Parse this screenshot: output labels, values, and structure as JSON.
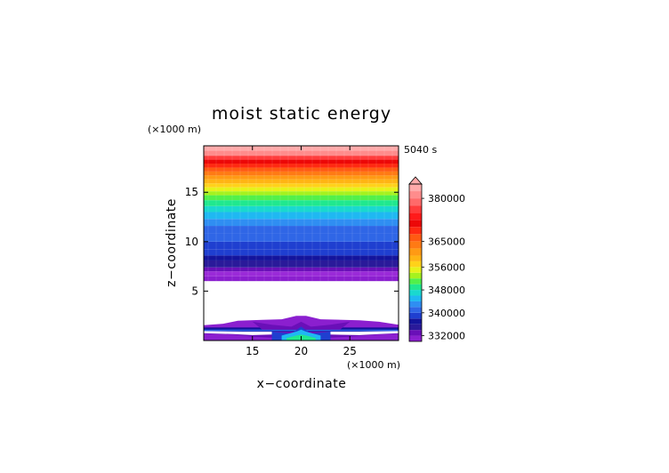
{
  "chart_data": {
    "type": "heatmap",
    "title": "moist static energy",
    "time_label": "5040 s",
    "xlabel": "x−coordinate",
    "ylabel": "z−coordinate",
    "x_unit": "(×1000 m)",
    "y_unit": "(×1000 m)",
    "xlim": [
      10,
      30
    ],
    "ylim": [
      0,
      19.7
    ],
    "x_ticks": [
      15,
      20,
      25
    ],
    "x_tick_labels": [
      "15",
      "20",
      "25"
    ],
    "y_ticks": [
      5,
      10,
      15
    ],
    "y_tick_labels": [
      "5",
      "10",
      "15"
    ],
    "colorbar": {
      "levels": [
        330000,
        332000,
        334000,
        336000,
        338000,
        340000,
        342000,
        344000,
        346000,
        348000,
        350000,
        352000,
        354000,
        356000,
        358000,
        360000,
        362500,
        365000,
        367500,
        370000,
        372500,
        375000,
        377500,
        380000,
        382500,
        385000
      ],
      "tick_values": [
        332000,
        340000,
        348000,
        356000,
        365000,
        380000
      ],
      "tick_labels": [
        "332000",
        "340000",
        "348000",
        "356000",
        "365000",
        "380000"
      ],
      "colors": [
        "#8b1fcf",
        "#6a0fb8",
        "#2a1a9a",
        "#14149c",
        "#1f3fd0",
        "#2f66e6",
        "#2f8ef2",
        "#1fb8f2",
        "#1ad8cf",
        "#20e88e",
        "#52f04a",
        "#a6f21e",
        "#e6f21a",
        "#ffd21a",
        "#ffb414",
        "#ff9a14",
        "#ff7a14",
        "#ff5a12",
        "#ff2a12",
        "#ec0808",
        "#ff1a1a",
        "#ff3c3c",
        "#ff6a6a",
        "#ff8c8c",
        "#ffaaaa"
      ],
      "extend": "max"
    },
    "upper_bands": [
      {
        "z0": 6.0,
        "z1": 6.5,
        "color": "#8b1fcf"
      },
      {
        "z0": 6.5,
        "z1": 7.0,
        "color": "#9a2ad8"
      },
      {
        "z0": 7.0,
        "z1": 7.4,
        "color": "#6a0fb8"
      },
      {
        "z0": 7.4,
        "z1": 8.1,
        "color": "#2a1a9a"
      },
      {
        "z0": 8.1,
        "z1": 8.6,
        "color": "#14149c"
      },
      {
        "z0": 8.6,
        "z1": 9.2,
        "color": "#1f3fd0"
      },
      {
        "z0": 9.2,
        "z1": 10.0,
        "color": "#1f3fd0"
      },
      {
        "z0": 10.0,
        "z1": 10.8,
        "color": "#2f66e6"
      },
      {
        "z0": 10.8,
        "z1": 11.6,
        "color": "#2f66e6"
      },
      {
        "z0": 11.6,
        "z1": 12.3,
        "color": "#2f8ef2"
      },
      {
        "z0": 12.3,
        "z1": 13.0,
        "color": "#1fb8f2"
      },
      {
        "z0": 13.0,
        "z1": 13.6,
        "color": "#1ad8cf"
      },
      {
        "z0": 13.6,
        "z1": 14.2,
        "color": "#20e88e"
      },
      {
        "z0": 14.2,
        "z1": 14.7,
        "color": "#52f04a"
      },
      {
        "z0": 14.7,
        "z1": 15.1,
        "color": "#a6f21e"
      },
      {
        "z0": 15.1,
        "z1": 15.5,
        "color": "#e6f21a"
      },
      {
        "z0": 15.5,
        "z1": 15.9,
        "color": "#ffd21a"
      },
      {
        "z0": 15.9,
        "z1": 16.3,
        "color": "#ffb414"
      },
      {
        "z0": 16.3,
        "z1": 16.7,
        "color": "#ff9a14"
      },
      {
        "z0": 16.7,
        "z1": 17.1,
        "color": "#ff7a14"
      },
      {
        "z0": 17.1,
        "z1": 17.5,
        "color": "#ff5a12"
      },
      {
        "z0": 17.5,
        "z1": 17.9,
        "color": "#ff2a12"
      },
      {
        "z0": 17.9,
        "z1": 18.3,
        "color": "#ec0808"
      },
      {
        "z0": 18.3,
        "z1": 18.7,
        "color": "#ff3c3c"
      },
      {
        "z0": 18.7,
        "z1": 19.2,
        "color": "#ff8c8c"
      },
      {
        "z0": 19.2,
        "z1": 19.7,
        "color": "#ffaaaa"
      }
    ],
    "lower_regions": [
      {
        "color": "#8b1fcf",
        "points": [
          [
            10,
            1.55
          ],
          [
            12,
            1.7
          ],
          [
            13.5,
            2.0
          ],
          [
            16,
            2.1
          ],
          [
            18,
            2.15
          ],
          [
            19.5,
            2.5
          ],
          [
            20.5,
            2.5
          ],
          [
            22,
            2.15
          ],
          [
            26,
            2.05
          ],
          [
            28,
            1.9
          ],
          [
            30,
            1.6
          ],
          [
            30,
            0
          ],
          [
            10,
            0
          ]
        ]
      },
      {
        "color": "#6a0fb8",
        "points": [
          [
            10,
            1.35
          ],
          [
            30,
            1.35
          ],
          [
            30,
            0
          ],
          [
            10,
            0
          ]
        ]
      },
      {
        "color": "#14149c",
        "points": [
          [
            10,
            1.3
          ],
          [
            30,
            1.3
          ],
          [
            30,
            0.9
          ],
          [
            10,
            0.9
          ]
        ]
      },
      {
        "color": "#2f66e6",
        "points": [
          [
            10,
            1.1
          ],
          [
            30,
            1.1
          ],
          [
            30,
            0.95
          ],
          [
            10,
            0.95
          ]
        ]
      },
      {
        "color": "#ffffff",
        "points": [
          [
            10,
            0.75
          ],
          [
            13,
            0.65
          ],
          [
            15,
            0.55
          ],
          [
            17,
            0.6
          ],
          [
            17,
            0.9
          ],
          [
            14,
            0.9
          ],
          [
            10,
            0.95
          ]
        ]
      },
      {
        "color": "#ffffff",
        "points": [
          [
            23,
            0.6
          ],
          [
            26,
            0.55
          ],
          [
            28,
            0.65
          ],
          [
            30,
            0.75
          ],
          [
            30,
            0.95
          ],
          [
            26,
            0.9
          ],
          [
            23,
            0.9
          ]
        ]
      },
      {
        "color": "#8b1fcf",
        "points": [
          [
            10,
            0.7
          ],
          [
            13,
            0.6
          ],
          [
            15,
            0.4
          ],
          [
            17,
            0.3
          ],
          [
            17,
            0
          ],
          [
            10,
            0
          ]
        ]
      },
      {
        "color": "#8b1fcf",
        "points": [
          [
            23,
            0.3
          ],
          [
            25,
            0.4
          ],
          [
            28,
            0.6
          ],
          [
            30,
            0.7
          ],
          [
            30,
            0
          ],
          [
            23,
            0
          ]
        ]
      },
      {
        "color": "#6a0fb8",
        "points": [
          [
            15,
            1.9
          ],
          [
            17,
            1.6
          ],
          [
            19,
            1.4
          ],
          [
            20,
            1.9
          ],
          [
            21,
            1.4
          ],
          [
            23,
            1.6
          ],
          [
            25,
            1.9
          ],
          [
            24,
            1.1
          ],
          [
            16,
            1.1
          ]
        ]
      },
      {
        "color": "#1f3fd0",
        "points": [
          [
            17,
            0.9
          ],
          [
            19,
            0.7
          ],
          [
            20,
            1.4
          ],
          [
            21,
            0.7
          ],
          [
            23,
            0.9
          ],
          [
            23,
            0
          ],
          [
            17,
            0
          ]
        ]
      },
      {
        "color": "#1fb8f2",
        "points": [
          [
            18,
            0.5
          ],
          [
            19.5,
            0.9
          ],
          [
            20,
            1.1
          ],
          [
            20.5,
            0.9
          ],
          [
            22,
            0.5
          ],
          [
            22,
            0
          ],
          [
            18,
            0
          ]
        ]
      },
      {
        "color": "#20e88e",
        "points": [
          [
            18.5,
            0.25
          ],
          [
            19.5,
            0.5
          ],
          [
            20,
            0.6
          ],
          [
            20.5,
            0.5
          ],
          [
            21.5,
            0.25
          ],
          [
            21.5,
            0
          ],
          [
            18.5,
            0
          ]
        ]
      }
    ],
    "white_gap": [
      2.2,
      6.0
    ]
  }
}
